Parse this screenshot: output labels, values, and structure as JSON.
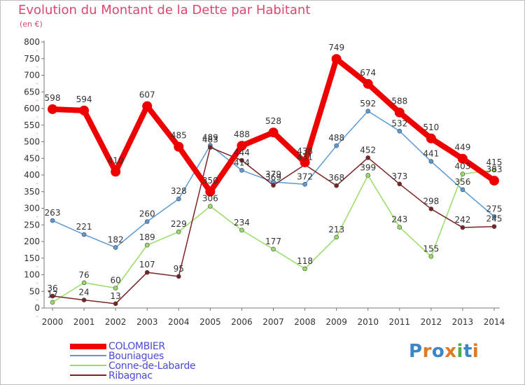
{
  "title": "Evolution du Montant de la Dette par Habitant",
  "unit_label": "(en €)",
  "logo": {
    "text": "Proxiti",
    "letters": [
      {
        "ch": "P",
        "color": "#3a86c8"
      },
      {
        "ch": "r",
        "color": "#e07a1f"
      },
      {
        "ch": "o",
        "color": "#3a86c8"
      },
      {
        "ch": "x",
        "color": "#e07a1f"
      },
      {
        "ch": "i",
        "color": "#4bb14a"
      },
      {
        "ch": "t",
        "color": "#3a86c8"
      },
      {
        "ch": "i",
        "color": "#e07a1f"
      }
    ]
  },
  "chart_data": {
    "type": "line",
    "title": "Evolution du Montant de la Dette par Habitant",
    "ylabel": "(en €)",
    "xlabel": "",
    "ylim": [
      0,
      800
    ],
    "ytick_step": 50,
    "grid": false,
    "legend_position": "bottom-left",
    "categories": [
      "2000",
      "2001",
      "2002",
      "2003",
      "2004",
      "2005",
      "2006",
      "2007",
      "2008",
      "2009",
      "2010",
      "2011",
      "2012",
      "2013",
      "2014"
    ],
    "series": [
      {
        "name": "Bouniagues",
        "color": "#5b9bd5",
        "width": 1.5,
        "values": [
          263,
          221,
          182,
          260,
          328,
          489,
          414,
          379,
          372,
          488,
          592,
          532,
          441,
          356,
          275
        ],
        "labels": [
          "263",
          "221",
          "182",
          "260",
          "328",
          "489",
          "414",
          "379",
          "372",
          "488",
          "592",
          "532",
          "441",
          "356",
          "275"
        ]
      },
      {
        "name": "Conne-de-Labarde",
        "color": "#99dd66",
        "width": 1.5,
        "values": [
          17,
          76,
          60,
          189,
          229,
          306,
          234,
          177,
          118,
          213,
          399,
          243,
          155,
          403,
          415
        ],
        "labels": [
          "17",
          "76",
          "60",
          "189",
          "229",
          "306",
          "234",
          "177",
          "118",
          "213",
          "399",
          "243",
          "155",
          "403",
          "415"
        ]
      },
      {
        "name": "Ribagnac",
        "color": "#7b2323",
        "width": 1.5,
        "values": [
          36,
          24,
          13,
          107,
          95,
          483,
          444,
          369,
          431,
          368,
          452,
          373,
          298,
          242,
          245
        ],
        "labels": [
          "36",
          "24",
          "13",
          "107",
          "95",
          "483",
          "444",
          "369",
          "431",
          "368",
          "452",
          "373",
          "298",
          "242",
          "245"
        ]
      },
      {
        "name": "COLOMBIER",
        "color": "#ee0000",
        "width": 8,
        "values": [
          598,
          594,
          410,
          607,
          485,
          350,
          488,
          528,
          438,
          749,
          674,
          588,
          510,
          449,
          383
        ],
        "labels": [
          "598",
          "594",
          "410",
          "607",
          "485",
          "350",
          "488",
          "528",
          "438",
          "749",
          "674",
          "588",
          "510",
          "449",
          "383"
        ]
      }
    ],
    "legend": [
      "COLOMBIER",
      "Bouniagues",
      "Conne-de-Labarde",
      "Ribagnac"
    ]
  }
}
